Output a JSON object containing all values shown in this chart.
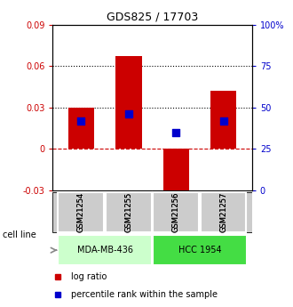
{
  "title": "GDS825 / 17703",
  "samples": [
    "GSM21254",
    "GSM21255",
    "GSM21256",
    "GSM21257"
  ],
  "log_ratios": [
    0.03,
    0.067,
    -0.035,
    0.042
  ],
  "percentile_ranks": [
    0.42,
    0.46,
    0.35,
    0.42
  ],
  "ylim_left": [
    -0.03,
    0.09
  ],
  "hlines_dotted": [
    0.03,
    0.06
  ],
  "hline_dashed": 0.0,
  "bar_color": "#cc0000",
  "point_color": "#0000cc",
  "groups": [
    {
      "label": "MDA-MB-436",
      "samples": [
        0,
        1
      ],
      "color": "#ccffcc"
    },
    {
      "label": "HCC 1954",
      "samples": [
        2,
        3
      ],
      "color": "#44dd44"
    }
  ],
  "cell_line_label": "cell line",
  "legend_log_ratio": "log ratio",
  "legend_percentile": "percentile rank within the sample",
  "left_yticks": [
    -0.03,
    0.0,
    0.03,
    0.06,
    0.09
  ],
  "right_ytick_vals": [
    0,
    0.25,
    0.5,
    0.75,
    1.0
  ],
  "right_yticklabels": [
    "0",
    "25",
    "50",
    "75",
    "100%"
  ],
  "left_yticklabels": [
    "-0.03",
    "0",
    "0.03",
    "0.06",
    "0.09"
  ],
  "bar_width": 0.55,
  "point_size": 30,
  "background_color": "#ffffff",
  "sample_box_color": "#cccccc",
  "group1_color": "#ccffcc",
  "group2_color": "#44dd44"
}
